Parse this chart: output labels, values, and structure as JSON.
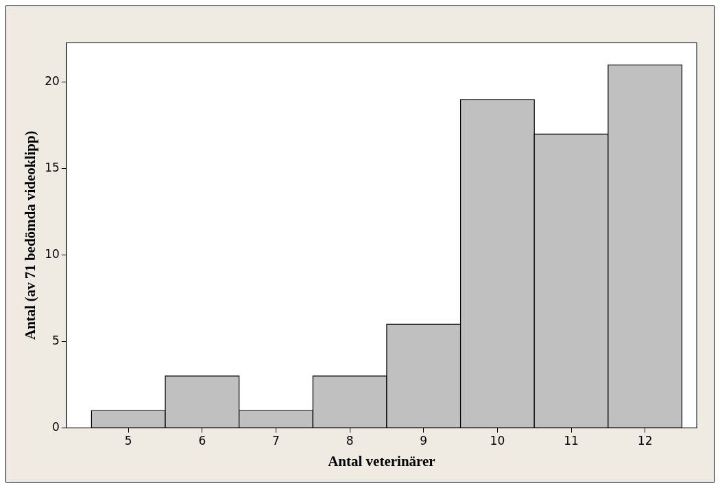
{
  "chart_data": {
    "type": "histogram",
    "xlabel": "Antal veterinärer",
    "ylabel": "Antal (av 71 bedömda videoklipp)",
    "bins": [
      4.5,
      5.5,
      6.5,
      7.5,
      8.5,
      9.5,
      10.5,
      11.5,
      12.5
    ],
    "values": [
      1,
      3,
      1,
      3,
      6,
      19,
      17,
      21
    ],
    "color": "#c0c0c0",
    "xlim": [
      4.16,
      12.7
    ],
    "xticks": [
      5,
      6,
      7,
      8,
      9,
      10,
      11,
      12
    ],
    "ylim": [
      0,
      22.3
    ],
    "yticks": [
      0,
      5,
      10,
      15,
      20
    ],
    "grid": false,
    "legend": false
  }
}
